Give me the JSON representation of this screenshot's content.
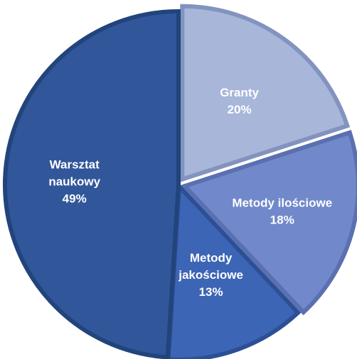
{
  "chart_data": {
    "type": "pie",
    "title": "",
    "legend": "none",
    "start_angle_deg": 0,
    "direction": "clockwise",
    "slices": [
      {
        "name": "Granty",
        "value": 20,
        "label_lines": [
          "Granty",
          "20%"
        ],
        "fill": "#A7B6D9",
        "edge": "#8393BF"
      },
      {
        "name": "Metody ilościowe",
        "value": 18,
        "label_lines": [
          "Metody ilościowe",
          "18%"
        ],
        "fill": "#7189CB",
        "edge": "#5A70B0"
      },
      {
        "name": "Metody jakościowe",
        "value": 13,
        "label_lines": [
          "Metody",
          "jakościowe",
          "13%"
        ],
        "fill": "#3D65B5",
        "edge": "#2D4F95"
      },
      {
        "name": "Warsztat naukowy",
        "value": 49,
        "label_lines": [
          "Warsztat",
          "naukowy",
          "49%"
        ],
        "fill": "#31579A",
        "edge": "#22447C"
      }
    ]
  }
}
